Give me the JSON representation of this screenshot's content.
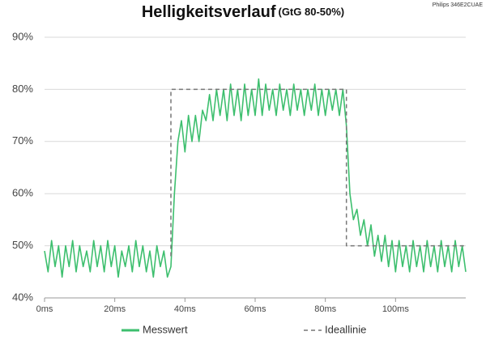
{
  "chart_data": {
    "type": "line",
    "title": "Helligkeitsverlauf",
    "subtitle": "(GtG 80-50%)",
    "device": "Philips 346E2CUAE",
    "xlim": [
      0,
      120
    ],
    "xticks": [
      {
        "value": 0,
        "label": "0ms"
      },
      {
        "value": 20,
        "label": "20ms"
      },
      {
        "value": 40,
        "label": "40ms"
      },
      {
        "value": 60,
        "label": "60ms"
      },
      {
        "value": 80,
        "label": "80ms"
      },
      {
        "value": 100,
        "label": "100ms"
      }
    ],
    "ylim": [
      40,
      90
    ],
    "yticks": [
      {
        "value": 40,
        "label": "40%"
      },
      {
        "value": 50,
        "label": "50%"
      },
      {
        "value": 60,
        "label": "60%"
      },
      {
        "value": 70,
        "label": "70%"
      },
      {
        "value": 80,
        "label": "80%"
      },
      {
        "value": 90,
        "label": "90%"
      }
    ],
    "grid": true,
    "series": [
      {
        "name": "Messwert",
        "color": "#3dbf6e",
        "dash": false,
        "x": [
          0,
          1,
          2,
          3,
          4,
          5,
          6,
          7,
          8,
          9,
          10,
          11,
          12,
          13,
          14,
          15,
          16,
          17,
          18,
          19,
          20,
          21,
          22,
          23,
          24,
          25,
          26,
          27,
          28,
          29,
          30,
          31,
          32,
          33,
          34,
          35,
          36,
          37,
          38,
          39,
          40,
          41,
          42,
          43,
          44,
          45,
          46,
          47,
          48,
          49,
          50,
          51,
          52,
          53,
          54,
          55,
          56,
          57,
          58,
          59,
          60,
          61,
          62,
          63,
          64,
          65,
          66,
          67,
          68,
          69,
          70,
          71,
          72,
          73,
          74,
          75,
          76,
          77,
          78,
          79,
          80,
          81,
          82,
          83,
          84,
          85,
          86,
          87,
          88,
          89,
          90,
          91,
          92,
          93,
          94,
          95,
          96,
          97,
          98,
          99,
          100,
          101,
          102,
          103,
          104,
          105,
          106,
          107,
          108,
          109,
          110,
          111,
          112,
          113,
          114,
          115,
          116,
          117,
          118,
          119,
          120
        ],
        "values": [
          49,
          45,
          51,
          46,
          50,
          44,
          50,
          46,
          51,
          45,
          50,
          46,
          49,
          45,
          51,
          46,
          50,
          45,
          51,
          46,
          50,
          44,
          49,
          46,
          50,
          45,
          51,
          46,
          50,
          45,
          49,
          44,
          50,
          46,
          49,
          44,
          46,
          60,
          70,
          74,
          68,
          75,
          70,
          75,
          70,
          76,
          74,
          79,
          74,
          80,
          75,
          80,
          74,
          81,
          75,
          80,
          74,
          81,
          75,
          80,
          75,
          82,
          75,
          81,
          76,
          80,
          75,
          81,
          76,
          80,
          75,
          81,
          76,
          80,
          75,
          80,
          76,
          81,
          75,
          80,
          75,
          80,
          76,
          80,
          75,
          80,
          73,
          60,
          55,
          57,
          52,
          55,
          50,
          54,
          48,
          52,
          47,
          52,
          46,
          51,
          45,
          51,
          46,
          50,
          45,
          51,
          46,
          50,
          45,
          51,
          46,
          50,
          45,
          51,
          46,
          50,
          45,
          51,
          46,
          50,
          45
        ]
      },
      {
        "name": "Ideallinie",
        "color": "#777777",
        "dash": true,
        "x": [
          36,
          36,
          86,
          86,
          120
        ],
        "values": [
          48,
          80,
          80,
          50,
          50
        ]
      }
    ]
  }
}
